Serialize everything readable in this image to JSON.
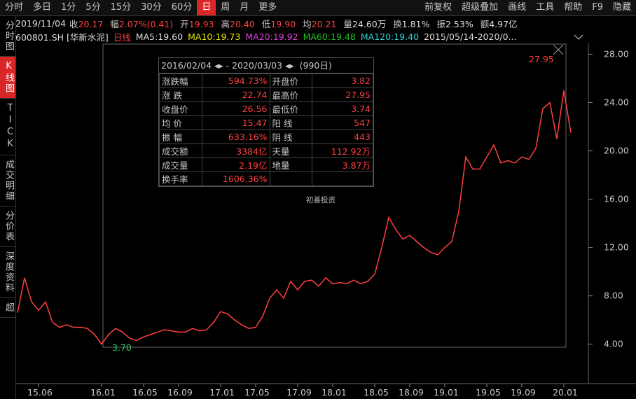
{
  "toolbar": {
    "tabs": [
      "分时",
      "多日",
      "1分",
      "5分",
      "15分",
      "30分",
      "60分",
      "日",
      "周",
      "月",
      "更多"
    ],
    "tools": [
      "前复权",
      "超级叠加",
      "画线",
      "工具",
      "帮助",
      "F9",
      "隐藏"
    ]
  },
  "sidebar": [
    "分时图",
    "K线图",
    "TICK",
    "成交明细",
    "分价表",
    "深度资料",
    "超"
  ],
  "quote_bar": {
    "date": "2019/11/04",
    "items": [
      [
        "收",
        "20.17"
      ],
      [
        "幅",
        "2.07%(0.41)"
      ],
      [
        "开",
        "19.93"
      ],
      [
        "高",
        "20.40"
      ],
      [
        "低",
        "19.90"
      ],
      [
        "均",
        "20.21"
      ],
      [
        "量",
        "24.60万"
      ],
      [
        "换",
        "1.81%"
      ],
      [
        "振",
        "2.53%"
      ],
      [
        "额",
        "4.97亿"
      ]
    ]
  },
  "legend_bar": {
    "symbol": "600801.SH [华新水泥]",
    "period": "日线",
    "ma": [
      "MA5:19.60",
      "MA10:19.73",
      "MA20:19.92",
      "MA60:19.48",
      "MA120:19.40"
    ],
    "range": "2015/05/14-2020/0..."
  },
  "stats_box": {
    "start": "2016/02/04",
    "end": "2020/03/03",
    "separator": "-",
    "days": "(990日)",
    "rows": [
      [
        "涨跌幅",
        "594.73%",
        "开盘价",
        "3.82"
      ],
      [
        "涨  跌",
        "22.74",
        "最高价",
        "27.95"
      ],
      [
        "收盘价",
        "26.56",
        "最低价",
        "3.74"
      ],
      [
        "均  价",
        "15.47",
        "阳  线",
        "547"
      ],
      [
        "振  幅",
        "633.16%",
        "阴  线",
        "443"
      ],
      [
        "成交额",
        "3384亿",
        "天量",
        "112.92万"
      ],
      [
        "成交量",
        "2.19亿",
        "地量",
        "3.87万"
      ],
      [
        "换手率",
        "1606.36%",
        "",
        ""
      ]
    ]
  },
  "chart_data": {
    "type": "line",
    "color": "#ff4040",
    "categories": [
      null,
      null,
      null,
      "15.06",
      null,
      null,
      null,
      null,
      null,
      null,
      null,
      null,
      "16.01",
      null,
      null,
      null,
      null,
      null,
      "16.05",
      null,
      null,
      null,
      null,
      "16.09",
      null,
      null,
      null,
      null,
      null,
      "17.01",
      null,
      null,
      null,
      null,
      "17.05",
      null,
      null,
      null,
      null,
      null,
      "17.09",
      null,
      null,
      null,
      null,
      "18.01",
      null,
      null,
      null,
      null,
      null,
      "18.05",
      null,
      null,
      null,
      null,
      "18.09",
      null,
      null,
      null,
      null,
      "19.01",
      null,
      null,
      null,
      null,
      null,
      "19.05",
      null,
      null,
      null,
      null,
      "19.09",
      null,
      null,
      null,
      null,
      null,
      "20.01",
      null
    ],
    "values": [
      6.6,
      9.5,
      7.5,
      6.8,
      7.5,
      5.8,
      5.4,
      5.6,
      5.4,
      5.4,
      5.3,
      4.8,
      4.0,
      4.8,
      5.3,
      5.0,
      4.5,
      4.3,
      4.6,
      4.8,
      5.0,
      5.2,
      5.1,
      5.0,
      5.0,
      5.3,
      5.1,
      5.2,
      5.8,
      6.7,
      6.5,
      6.0,
      5.6,
      5.3,
      5.4,
      6.3,
      7.8,
      8.5,
      7.8,
      9.2,
      8.5,
      9.2,
      9.3,
      8.8,
      9.5,
      9.0,
      9.1,
      9.0,
      9.3,
      9.0,
      9.2,
      9.8,
      12.0,
      14.5,
      13.5,
      12.7,
      13.0,
      12.5,
      12.0,
      11.6,
      11.4,
      12.0,
      12.5,
      15.0,
      19.5,
      18.5,
      18.5,
      19.5,
      20.5,
      19.0,
      19.2,
      19.0,
      19.5,
      19.3,
      20.2,
      23.5,
      24.0,
      21.0,
      25.0,
      21.5
    ],
    "ylim": [
      1.2,
      28.9
    ],
    "yticks": [
      {
        "value": 4,
        "label": "4.00"
      },
      {
        "value": 8,
        "label": "8.00"
      },
      {
        "value": 12,
        "label": "12.00"
      },
      {
        "value": 16,
        "label": "16.00"
      },
      {
        "value": 20,
        "label": "20.00"
      },
      {
        "value": 24,
        "label": "24.00"
      },
      {
        "value": 28,
        "label": "28.00"
      }
    ],
    "annotations": [
      "27.95",
      "3.70"
    ],
    "watermark": "初善投资"
  }
}
